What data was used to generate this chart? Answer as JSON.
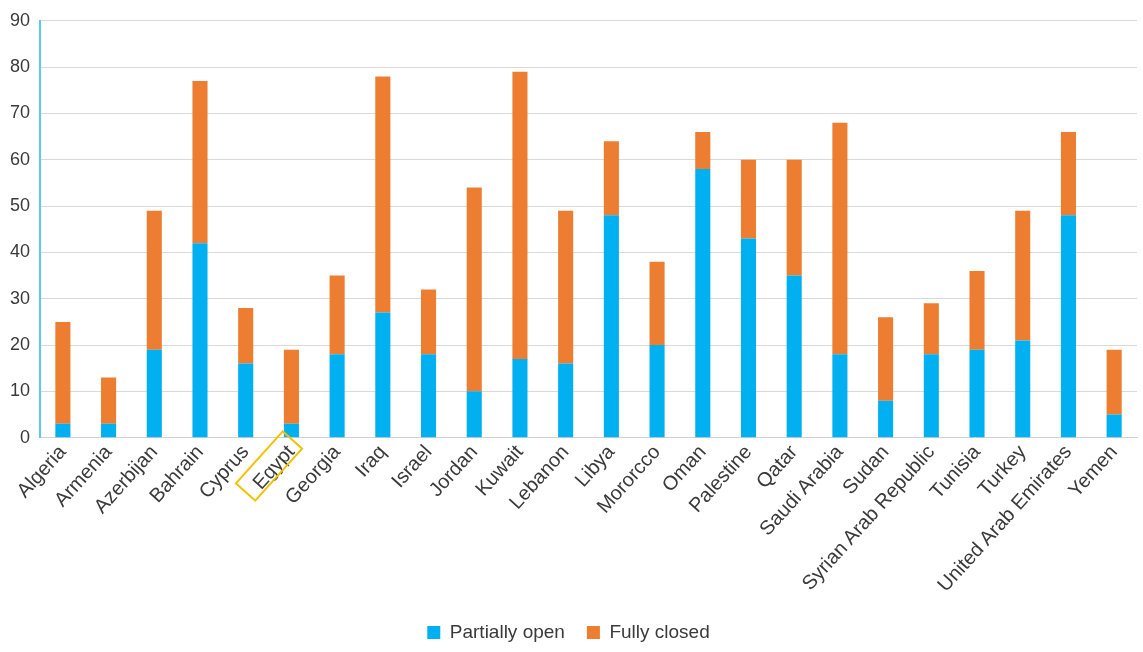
{
  "chart_data": {
    "type": "bar",
    "stacked": true,
    "categories": [
      "Algeria",
      "Armenia",
      "Azerbijan",
      "Bahrain",
      "Cyprus",
      "Egypt",
      "Georgia",
      "Iraq",
      "Israel",
      "Jordan",
      "Kuwait",
      "Lebanon",
      "Libya",
      "Mororcco",
      "Oman",
      "Palestine",
      "Qatar",
      "Saudi Arabia",
      "Sudan",
      "Syrian Arab Republic",
      "Tunisia",
      "Turkey",
      "United Arab Emirates",
      "Yemen"
    ],
    "series": [
      {
        "name": "Partially open",
        "color": "#00b0f0",
        "values": [
          3,
          3,
          19,
          42,
          16,
          3,
          18,
          27,
          18,
          10,
          17,
          16,
          48,
          20,
          58,
          43,
          35,
          18,
          8,
          18,
          19,
          21,
          48,
          5
        ]
      },
      {
        "name": "Fully closed",
        "color": "#ed7d31",
        "values": [
          22,
          10,
          30,
          35,
          12,
          16,
          17,
          51,
          14,
          44,
          62,
          33,
          16,
          18,
          8,
          17,
          25,
          50,
          18,
          11,
          17,
          28,
          18,
          14
        ]
      }
    ],
    "ylim": [
      0,
      90
    ],
    "yticks": [
      0,
      10,
      20,
      30,
      40,
      50,
      60,
      70,
      80,
      90
    ],
    "grid": "y",
    "legend": "bottom"
  }
}
